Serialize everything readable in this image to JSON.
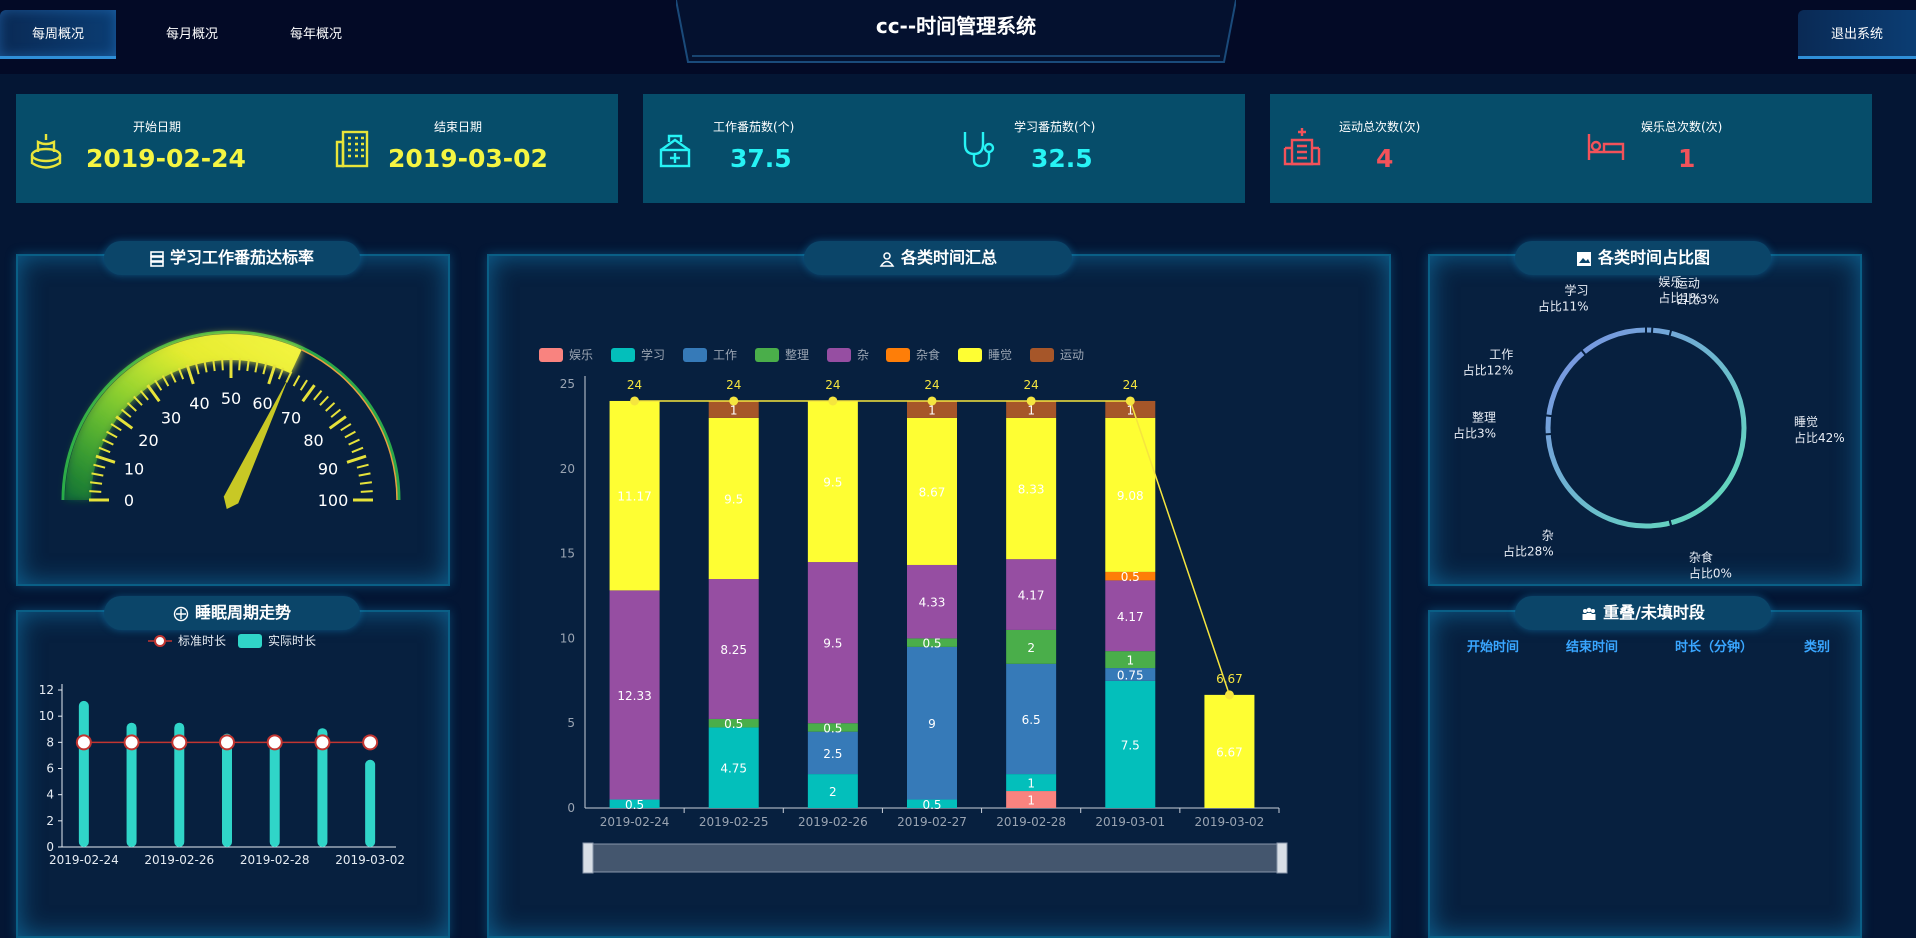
{
  "nav": {
    "weekly": "每周概况",
    "monthly": "每月概况",
    "yearly": "每年概况",
    "exit": "退出系统"
  },
  "app_title": "cc--时间管理系统",
  "stats": {
    "start_date": {
      "label": "开始日期",
      "value": "2019-02-24",
      "icon": "cake-icon"
    },
    "end_date": {
      "label": "结束日期",
      "value": "2019-03-02",
      "icon": "building-icon"
    },
    "work_tomato": {
      "label": "工作番茄数(个)",
      "value": "37.5",
      "icon": "medical-kit-icon"
    },
    "study_tomato": {
      "label": "学习番茄数(个)",
      "value": "32.5",
      "icon": "stethoscope-icon"
    },
    "sport_count": {
      "label": "运动总次数(次)",
      "value": "4",
      "icon": "hospital-icon"
    },
    "fun_count": {
      "label": "娱乐总次数(次)",
      "value": "1",
      "icon": "bed-icon"
    }
  },
  "colors": {
    "yellow_value": "#f5f542",
    "cyan_value": "#27f3f5",
    "red_value": "#f2525a"
  },
  "gauge_panel": {
    "title": "学习工作番茄达标率"
  },
  "bar_panel": {
    "title": "各类时间汇总"
  },
  "pie_panel": {
    "title": "各类时间占比图"
  },
  "sleep_panel": {
    "title": "睡眠周期走势"
  },
  "table_panel": {
    "title": "重叠/未填时段",
    "headers": [
      "开始时间",
      "结束时间",
      "时长（分钟）",
      "类别"
    ]
  },
  "chart_data": [
    {
      "type": "gauge",
      "min": 0,
      "max": 100,
      "ticks": [
        "0",
        "10",
        "20",
        "30",
        "40",
        "50",
        "60",
        "70",
        "80",
        "90",
        "100"
      ],
      "value": 64
    },
    {
      "type": "bar",
      "stacked": true,
      "categories": [
        "2019-02-24",
        "2019-02-25",
        "2019-02-26",
        "2019-02-27",
        "2019-02-28",
        "2019-03-01",
        "2019-03-02"
      ],
      "ylim": [
        0,
        25
      ],
      "yticks": [
        "0",
        "5",
        "10",
        "15",
        "20",
        "25"
      ],
      "legend_position": "top-left",
      "series": [
        {
          "name": "娱乐",
          "color": "#f9837f",
          "values": [
            0,
            0,
            0,
            0,
            1,
            0,
            0
          ],
          "labels": [
            "",
            "",
            "",
            "",
            "1",
            "",
            ""
          ]
        },
        {
          "name": "学习",
          "color": "#03bfbb",
          "values": [
            0.5,
            4.75,
            2,
            0.5,
            1,
            7.5,
            0
          ],
          "labels": [
            "0.5",
            "4.75",
            "2",
            "0.5",
            "1",
            "7.5",
            ""
          ]
        },
        {
          "name": "工作",
          "color": "#367ab8",
          "values": [
            0,
            0,
            2.5,
            9,
            6.5,
            0.75,
            0
          ],
          "labels": [
            "",
            "",
            "2.5",
            "9",
            "6.5",
            "0.75",
            ""
          ]
        },
        {
          "name": "整理",
          "color": "#4aae4a",
          "values": [
            0,
            0.5,
            0.5,
            0.5,
            2,
            1,
            0
          ],
          "labels": [
            "",
            "0.5",
            "0.5",
            "0.5",
            "2",
            "1",
            ""
          ]
        },
        {
          "name": "杂",
          "color": "#964ea2",
          "values": [
            12.33,
            8.25,
            9.5,
            4.33,
            4.17,
            4.17,
            0
          ],
          "labels": [
            "12.33",
            "8.25",
            "9.5",
            "4.33",
            "4.17",
            "4.17",
            ""
          ]
        },
        {
          "name": "杂食",
          "color": "#fe7e08",
          "values": [
            0,
            0,
            0,
            0,
            0,
            0.5,
            0
          ],
          "labels": [
            "",
            "",
            "",
            "",
            "",
            "0.5",
            ""
          ]
        },
        {
          "name": "睡觉",
          "color": "#fefe33",
          "values": [
            11.17,
            9.5,
            9.5,
            8.67,
            8.33,
            9.08,
            6.67
          ],
          "labels": [
            "11.17",
            "9.5",
            "9.5",
            "8.67",
            "8.33",
            "9.08",
            "6.67"
          ]
        },
        {
          "name": "运动",
          "color": "#a65629",
          "values": [
            0,
            1,
            0,
            1,
            1,
            1,
            0
          ],
          "labels": [
            "",
            "1",
            "",
            "1",
            "1",
            "1",
            ""
          ]
        }
      ],
      "total_line": {
        "color": "#f5e53f",
        "values": [
          24,
          24,
          24,
          24,
          24,
          24,
          6.67
        ],
        "labels": [
          "24",
          "24",
          "24",
          "24",
          "24",
          "24",
          "6.67"
        ]
      }
    },
    {
      "type": "pie",
      "variant": "ring",
      "slices": [
        {
          "name": "娱乐",
          "label": "占比1%",
          "value": 1
        },
        {
          "name": "运动",
          "label": "占比3%",
          "value": 3
        },
        {
          "name": "睡觉",
          "label": "占比42%",
          "value": 42
        },
        {
          "name": "杂食",
          "label": "占比0%",
          "value": 0
        },
        {
          "name": "杂",
          "label": "占比28%",
          "value": 28
        },
        {
          "name": "整理",
          "label": "占比3%",
          "value": 3
        },
        {
          "name": "工作",
          "label": "占比12%",
          "value": 12
        },
        {
          "name": "学习",
          "label": "占比11%",
          "value": 11
        }
      ]
    },
    {
      "type": "bar",
      "categories": [
        "2019-02-24",
        "2019-02-25",
        "2019-02-26",
        "2019-02-27",
        "2019-02-28",
        "2019-03-01",
        "2019-03-02"
      ],
      "xticks": [
        "2019-02-24",
        "2019-02-26",
        "2019-02-28",
        "2019-03-02"
      ],
      "ylim": [
        0,
        12
      ],
      "yticks": [
        "0",
        "2",
        "4",
        "6",
        "8",
        "10",
        "12"
      ],
      "legend_position": "top",
      "series": [
        {
          "name": "标准时长",
          "type": "line",
          "color": "#c23531",
          "values": [
            8,
            8,
            8,
            8,
            8,
            8,
            8
          ]
        },
        {
          "name": "实际时长",
          "type": "bar",
          "color": "#30d5c8",
          "values": [
            11.17,
            9.5,
            9.5,
            8.67,
            8.33,
            9.08,
            6.67
          ]
        }
      ]
    }
  ]
}
